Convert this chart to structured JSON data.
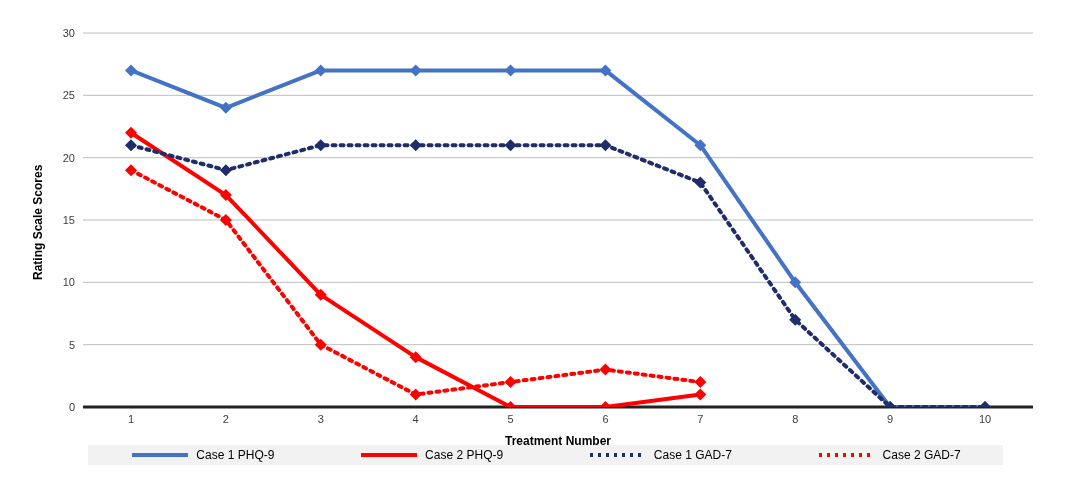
{
  "chart_data": {
    "type": "line",
    "xlabel": "Treatment Number",
    "ylabel": "Rating Scale Scores",
    "categories": [
      "1",
      "2",
      "3",
      "4",
      "5",
      "6",
      "7",
      "8",
      "9",
      "10"
    ],
    "series": [
      {
        "name": "Case 1 PHQ-9",
        "color": "#4472c4",
        "line_style": "solid",
        "values": [
          27,
          24,
          27,
          27,
          27,
          27,
          21,
          10,
          0,
          0
        ]
      },
      {
        "name": "Case 2 PHQ-9",
        "color": "#ff0000",
        "line_style": "solid",
        "values": [
          22,
          17,
          9,
          4,
          0,
          0,
          1,
          null,
          null,
          null
        ]
      },
      {
        "name": "Case 1 GAD-7",
        "color": "#1f2d6b",
        "line_style": "dotted",
        "values": [
          21,
          19,
          21,
          21,
          21,
          21,
          18,
          7,
          0,
          0
        ]
      },
      {
        "name": "Case 2 GAD-7",
        "color": "#ff0000",
        "line_style": "dotted",
        "values": [
          19,
          15,
          5,
          1,
          2,
          3,
          2,
          null,
          null,
          null
        ]
      }
    ],
    "ylim": [
      0,
      30
    ],
    "yticks": [
      0,
      5,
      10,
      15,
      20,
      25,
      30
    ],
    "grid": "y",
    "legend": "bottom",
    "marker": "diamond"
  }
}
